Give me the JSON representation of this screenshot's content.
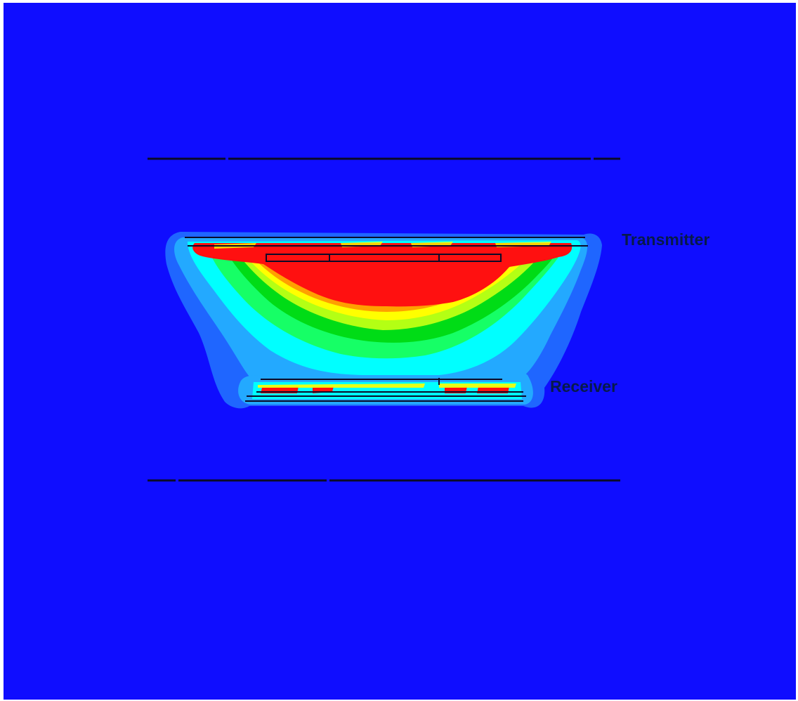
{
  "labels": {
    "transmitter": "Transmitter",
    "receiver": "Receiver"
  },
  "colors": {
    "background": "#0f0dff",
    "field_level_1": "#1f66ff",
    "field_level_2": "#23a9ff",
    "field_level_3": "#00ffff",
    "field_level_4": "#16ff66",
    "field_level_5": "#00dc16",
    "field_level_6": "#b4ff14",
    "field_level_7": "#ffff00",
    "field_level_8": "#ffa000",
    "field_max": "#ff1010",
    "outline": "#0a0a28"
  }
}
